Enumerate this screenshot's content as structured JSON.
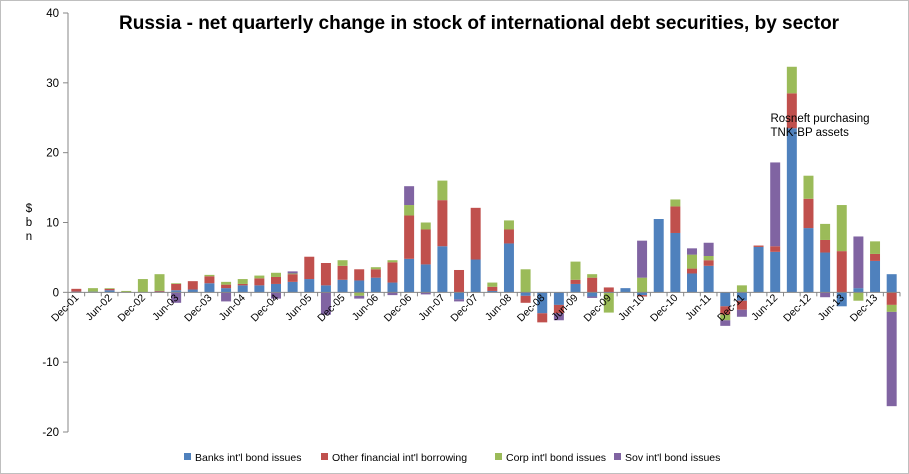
{
  "chart_data": {
    "type": "bar",
    "stacked": true,
    "title": "Russia - net quarterly change in stock of international debt securities, by sector",
    "ylabel": "$ bn",
    "xlabel": "",
    "ylim": [
      -20,
      40
    ],
    "yticks": [
      -20,
      -10,
      0,
      10,
      20,
      30,
      40
    ],
    "grid": false,
    "legend_position": "bottom",
    "annotation": {
      "lines": [
        "Rosneft purchasing",
        "TNK-BP assets"
      ],
      "category": "Dec-12",
      "y": 24
    },
    "categories": [
      "Dec-01",
      "Mar-02",
      "Jun-02",
      "Sep-02",
      "Dec-02",
      "Mar-03",
      "Jun-03",
      "Sep-03",
      "Dec-03",
      "Mar-04",
      "Jun-04",
      "Sep-04",
      "Dec-04",
      "Mar-05",
      "Jun-05",
      "Sep-05",
      "Dec-05",
      "Mar-06",
      "Jun-06",
      "Sep-06",
      "Dec-06",
      "Mar-07",
      "Jun-07",
      "Sep-07",
      "Dec-07",
      "Mar-08",
      "Jun-08",
      "Sep-08",
      "Dec-08",
      "Mar-09",
      "Jun-09",
      "Sep-09",
      "Dec-09",
      "Mar-10",
      "Jun-10",
      "Sep-10",
      "Dec-10",
      "Mar-11",
      "Jun-11",
      "Sep-11",
      "Dec-11",
      "Mar-12",
      "Jun-12",
      "Sep-12",
      "Dec-12",
      "Mar-13",
      "Jun-13",
      "Sep-13",
      "Dec-13",
      "Mar-14"
    ],
    "tick_labels": [
      "Dec-01",
      "",
      "Jun-02",
      "",
      "Dec-02",
      "",
      "Jun-03",
      "",
      "Dec-03",
      "",
      "Jun-04",
      "",
      "Dec-04",
      "",
      "Jun-05",
      "",
      "Dec-05",
      "",
      "Jun-06",
      "",
      "Dec-06",
      "",
      "Jun-07",
      "",
      "Dec-07",
      "",
      "Jun-08",
      "",
      "Dec-08",
      "",
      "Jun-09",
      "",
      "Dec-09",
      "",
      "Jun-10",
      "",
      "Dec-10",
      "",
      "Jun-11",
      "",
      "Dec-11",
      "",
      "Jun-12",
      "",
      "Dec-12",
      "",
      "Jun-13",
      "",
      "Dec-13",
      ""
    ],
    "series": [
      {
        "name": "Banks int'l bond issues",
        "color": "#4F81BD",
        "values": [
          0.1,
          0.1,
          0.3,
          0.0,
          0.0,
          0.1,
          0.3,
          0.4,
          1.3,
          0.6,
          1.0,
          1.0,
          1.2,
          1.5,
          1.9,
          1.0,
          1.8,
          1.7,
          2.1,
          1.4,
          4.8,
          4.0,
          6.6,
          -1.0,
          4.7,
          0.2,
          7.0,
          -0.5,
          -3.0,
          -1.8,
          1.2,
          -0.6,
          -0.1,
          0.6,
          -0.4,
          10.5,
          8.5,
          2.7,
          3.8,
          -2.0,
          -1.2,
          6.5,
          5.8,
          23.5,
          9.2,
          5.7,
          -2.0,
          0.6,
          4.5,
          2.6
        ]
      },
      {
        "name": "Other financial int'l borrowing",
        "color": "#C0504D",
        "values": [
          0.4,
          0.0,
          0.2,
          0.0,
          0.0,
          0.1,
          0.9,
          1.2,
          1.0,
          0.5,
          0.2,
          1.0,
          1.0,
          1.1,
          3.2,
          3.2,
          2.0,
          1.6,
          1.2,
          2.9,
          6.2,
          5.0,
          6.6,
          3.2,
          7.4,
          0.6,
          2.0,
          -1.0,
          -1.3,
          -1.2,
          0.6,
          2.1,
          0.7,
          0.0,
          -0.2,
          0.0,
          3.8,
          0.7,
          0.8,
          -1.2,
          -1.3,
          0.2,
          0.8,
          5.0,
          4.2,
          1.8,
          5.9,
          0.0,
          1.0,
          -1.8
        ]
      },
      {
        "name": "Corp int'l bond issues",
        "color": "#9BBB59",
        "values": [
          0.0,
          0.5,
          0.1,
          0.2,
          1.9,
          2.4,
          0.1,
          0.0,
          0.2,
          0.4,
          0.7,
          0.4,
          0.6,
          0.1,
          0.0,
          0.0,
          0.8,
          -0.5,
          0.3,
          0.3,
          1.5,
          1.0,
          2.8,
          0.0,
          0.0,
          0.6,
          1.3,
          3.3,
          0.0,
          0.0,
          2.6,
          0.5,
          -2.8,
          0.0,
          2.1,
          0.0,
          1.0,
          2.0,
          0.6,
          -0.8,
          1.0,
          0.0,
          0.0,
          3.8,
          3.3,
          2.3,
          6.6,
          -1.2,
          1.8,
          -1.0
        ]
      },
      {
        "name": "Sov int'l bond issues",
        "color": "#8064A2",
        "values": [
          0.0,
          0.0,
          0.0,
          0.0,
          0.0,
          0.0,
          -1.5,
          0.0,
          0.0,
          -1.3,
          0.0,
          0.0,
          -0.9,
          0.3,
          0.0,
          -3.2,
          0.0,
          -0.4,
          0.0,
          -0.4,
          2.7,
          -0.3,
          0.0,
          -0.3,
          0.0,
          0.0,
          0.0,
          0.0,
          0.0,
          -1.0,
          0.0,
          -0.2,
          0.0,
          0.0,
          5.3,
          0.0,
          0.0,
          0.9,
          1.9,
          -0.8,
          -1.0,
          0.0,
          12.0,
          0.0,
          0.0,
          -0.7,
          0.0,
          7.4,
          0.0,
          -13.5
        ]
      }
    ]
  }
}
